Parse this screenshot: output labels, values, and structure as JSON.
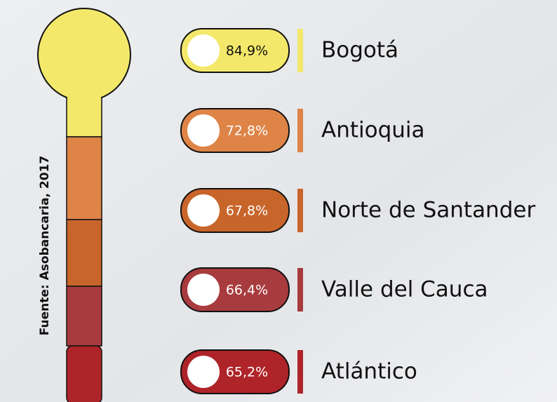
{
  "chart_data": {
    "type": "thermometer",
    "note": "Fuente: Asobancaria, 2017",
    "categories": [
      "Bogotá",
      "Antioquia",
      "Norte de Santander",
      "Valle del Cauca",
      "Atlántico"
    ],
    "values": [
      84.9,
      72.8,
      67.8,
      66.4,
      65.2
    ],
    "value_labels": [
      "84,9%",
      "72,8%",
      "67,8%",
      "66,4%",
      "65,2%"
    ],
    "colors": [
      "#f3e86a",
      "#de8447",
      "#c8652a",
      "#a83b3e",
      "#ae2429"
    ]
  }
}
